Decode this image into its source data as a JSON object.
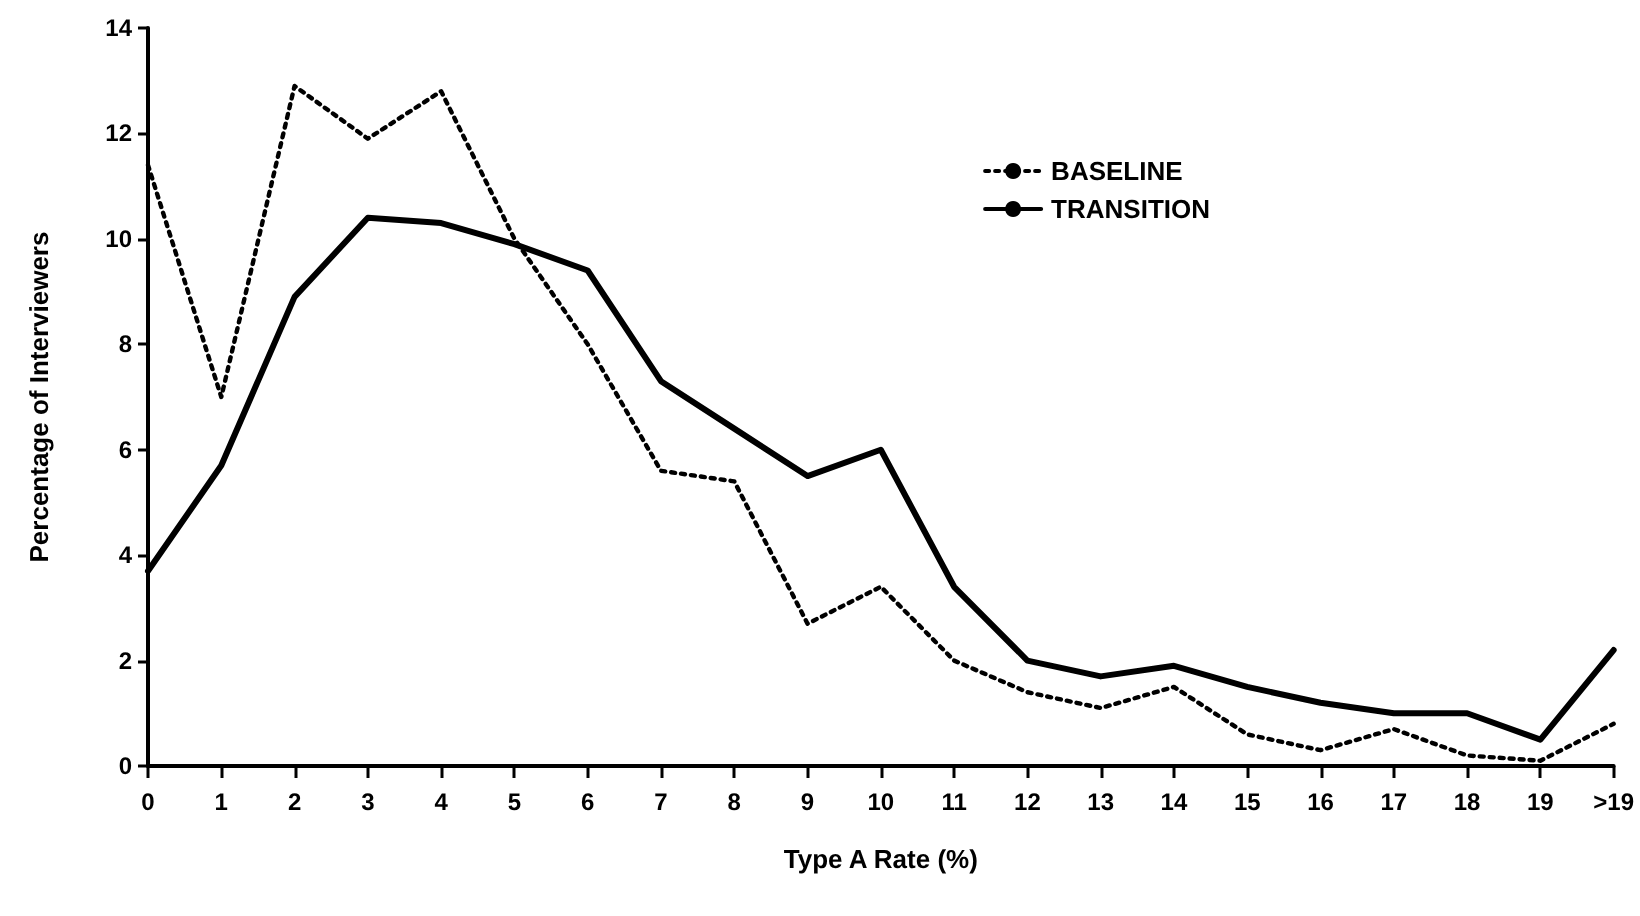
{
  "chart_data": {
    "type": "line",
    "xlabel": "Type A Rate (%)",
    "ylabel": "Percentage of Interviewers",
    "categories": [
      "0",
      "1",
      "2",
      "3",
      "4",
      "5",
      "6",
      "7",
      "8",
      "9",
      "10",
      "11",
      "12",
      "13",
      "14",
      "15",
      "16",
      "17",
      "18",
      "19",
      ">19"
    ],
    "series": [
      {
        "name": "BASELINE",
        "color": "#000000",
        "line_style": "dotted",
        "values": [
          11.4,
          7.0,
          12.9,
          11.9,
          12.8,
          10.0,
          8.0,
          5.6,
          5.4,
          2.7,
          3.4,
          2.0,
          1.4,
          1.1,
          1.5,
          0.6,
          0.3,
          0.7,
          0.2,
          0.1,
          0.8
        ]
      },
      {
        "name": "TRANSITION",
        "color": "#000000",
        "line_style": "solid",
        "values": [
          3.7,
          5.7,
          8.9,
          10.4,
          10.3,
          9.9,
          9.4,
          7.3,
          6.4,
          5.5,
          6.0,
          3.4,
          2.0,
          1.7,
          1.9,
          1.5,
          1.2,
          1.0,
          1.0,
          0.5,
          2.2
        ]
      }
    ],
    "ylim": [
      0,
      14
    ],
    "yticks": [
      0,
      2,
      4,
      6,
      8,
      10,
      12,
      14
    ],
    "grid": false,
    "legend": "top right",
    "marker": "none"
  }
}
